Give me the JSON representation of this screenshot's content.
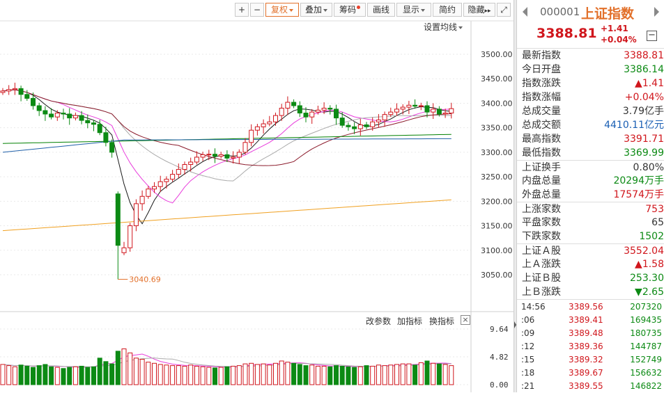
{
  "toolbar": {
    "plus": "+",
    "minus": "−",
    "fuquan": "复权",
    "diejia": "叠加",
    "chouma": "筹码",
    "huaxian": "画线",
    "xianshi": "显示",
    "jianyue": "简约",
    "yincang": "隐藏",
    "more": "▸▸",
    "fullscreen": "⤢"
  },
  "set_ma": "设置均线",
  "chart": {
    "price_ticks": [
      "3500.00",
      "3450.00",
      "3400.00",
      "3350.00",
      "3300.00",
      "3250.00",
      "3200.00",
      "3150.00",
      "3100.00",
      "3050.00"
    ],
    "low_label": "3040.69",
    "volume_ticks": [
      "9.64",
      "4.82",
      "0.00"
    ],
    "indicator_buttons": {
      "gaicanshu": "改参数",
      "jiazhibiao": "加指标",
      "huanzhibiao": "换指标",
      "close": "×"
    }
  },
  "chart_data": {
    "type": "candlestick",
    "ylim": [
      3030,
      3520
    ],
    "volume_ylim": [
      0,
      9.64
    ],
    "colors": {
      "up": "#d0161c",
      "down": "#0c8a14",
      "ma5": "#1a1a1a",
      "ma10": "#e83cdc",
      "ma20": "#aaaaaa",
      "ma30": "#8b1a2b",
      "ma60": "#008000",
      "ma120": "#1f5fa8",
      "ma250": "#f0a020"
    },
    "low_annotation": 3040.69
  },
  "info": {
    "code": "000001",
    "name": "上证指数",
    "price": "3388.81",
    "change": "+1.41",
    "change_pct": "+0.04%",
    "collapse": "−",
    "rows": [
      {
        "label": "最新指数",
        "value": "3388.81",
        "color": "red"
      },
      {
        "label": "今日开盘",
        "value": "3386.14",
        "color": "green"
      },
      {
        "label": "指数涨跌",
        "value": "▲1.41",
        "color": "red"
      },
      {
        "label": "指数涨幅",
        "value": "+0.04%",
        "color": "red"
      },
      {
        "label": "总成交量",
        "value": "3.79亿手",
        "color": "dark"
      },
      {
        "label": "总成交额",
        "value": "4410.11亿元",
        "color": "blue"
      },
      {
        "label": "最高指数",
        "value": "3391.71",
        "color": "red"
      },
      {
        "label": "最低指数",
        "value": "3369.99",
        "color": "green"
      },
      {
        "label": "上证换手",
        "value": "0.80%",
        "color": "dark"
      },
      {
        "label": "内盘总量",
        "value": "20294万手",
        "color": "green"
      },
      {
        "label": "外盘总量",
        "value": "17574万手",
        "color": "red"
      },
      {
        "label": "上涨家数",
        "value": "753",
        "color": "red"
      },
      {
        "label": "平盘家数",
        "value": "65",
        "color": "dark"
      },
      {
        "label": "下跌家数",
        "value": "1502",
        "color": "green"
      },
      {
        "label": "上证Ａ股",
        "value": "3552.04",
        "color": "red"
      },
      {
        "label": "上Ａ涨跌",
        "value": "▲1.58",
        "color": "red"
      },
      {
        "label": "上证Ｂ股",
        "value": "253.30",
        "color": "green"
      },
      {
        "label": "上Ｂ涨跌",
        "value": "▼2.65",
        "color": "green"
      }
    ],
    "ticks": [
      {
        "time": "14:56",
        "price": "3389.56",
        "vol": "207320"
      },
      {
        "time": ":06",
        "price": "3389.41",
        "vol": "169435"
      },
      {
        "time": ":09",
        "price": "3389.48",
        "vol": "180735"
      },
      {
        "time": ":12",
        "price": "3389.36",
        "vol": "144787"
      },
      {
        "time": ":15",
        "price": "3389.32",
        "vol": "152749"
      },
      {
        "time": ":18",
        "price": "3389.67",
        "vol": "156632"
      },
      {
        "time": ":21",
        "price": "3389.55",
        "vol": "146822"
      }
    ]
  }
}
